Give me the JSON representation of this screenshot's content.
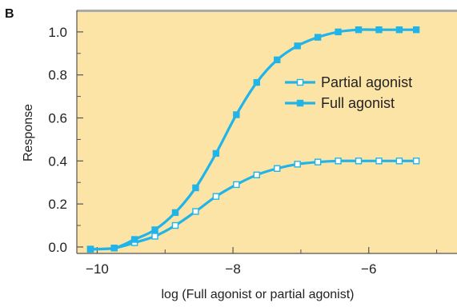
{
  "panel_label": "B",
  "colors": {
    "plot_background": "#fbe4a6",
    "series": "#21b4e8",
    "partial_marker_fill": "#ffffff",
    "axis": "#555555"
  },
  "chart_data": {
    "type": "line",
    "title": "",
    "xlabel": "log (Full agonist or partial agonist)",
    "ylabel": "Response",
    "xlim": [
      -10.3,
      -4.7
    ],
    "ylim": [
      -0.03,
      1.1
    ],
    "xticks": [
      -10,
      -8,
      -6
    ],
    "xtick_labels": [
      "−10",
      "−8",
      "−6"
    ],
    "yticks": [
      0.0,
      0.2,
      0.4,
      0.6,
      0.8,
      1.0
    ],
    "ytick_labels": [
      "0.0",
      "0.2",
      "0.4",
      "0.6",
      "0.8",
      "1.0"
    ],
    "grid": false,
    "legend_position": "center-right",
    "series": [
      {
        "name": "Partial agonist",
        "marker": "hollow-square",
        "x": [
          -10.1,
          -9.75,
          -9.45,
          -9.15,
          -8.85,
          -8.55,
          -8.25,
          -7.95,
          -7.65,
          -7.35,
          -7.05,
          -6.75,
          -6.45,
          -6.15,
          -5.85,
          -5.55,
          -5.3
        ],
        "y": [
          -0.01,
          -0.005,
          0.02,
          0.05,
          0.1,
          0.165,
          0.235,
          0.29,
          0.335,
          0.365,
          0.385,
          0.395,
          0.4,
          0.4,
          0.4,
          0.4,
          0.4
        ]
      },
      {
        "name": "Full agonist",
        "marker": "filled-square",
        "x": [
          -10.1,
          -9.75,
          -9.45,
          -9.15,
          -8.85,
          -8.55,
          -8.25,
          -7.95,
          -7.65,
          -7.35,
          -7.05,
          -6.75,
          -6.45,
          -6.15,
          -5.85,
          -5.55,
          -5.3
        ],
        "y": [
          -0.01,
          -0.005,
          0.035,
          0.08,
          0.16,
          0.275,
          0.435,
          0.615,
          0.765,
          0.87,
          0.935,
          0.975,
          1.0,
          1.01,
          1.01,
          1.01,
          1.01
        ]
      }
    ]
  }
}
